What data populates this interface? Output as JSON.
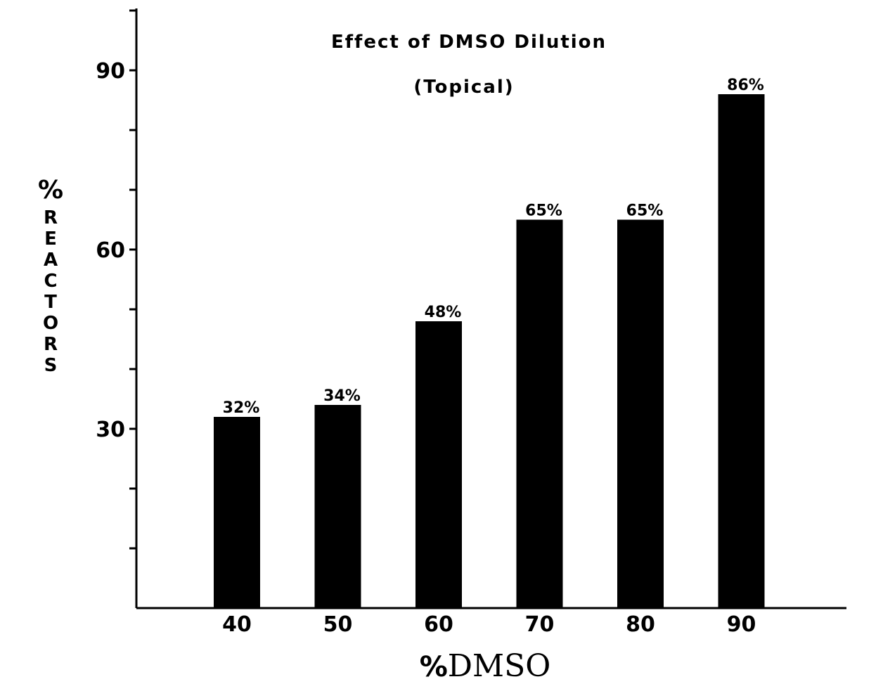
{
  "chart_data": {
    "type": "bar",
    "title": "Effect of DMSO Dilution",
    "subtitle": "(Topical)",
    "categories": [
      "40",
      "50",
      "60",
      "70",
      "80",
      "90"
    ],
    "values": [
      32,
      34,
      48,
      65,
      65,
      86
    ],
    "data_labels": [
      "32%",
      "34%",
      "48%",
      "65%",
      "65%",
      "86%"
    ],
    "xlabel": "%DMSO",
    "xlabel_symbol": "%",
    "xlabel_word": "DMSO",
    "ylabel": "% REACTORS",
    "ylabel_symbol": "%",
    "ylabel_letters": [
      "R",
      "E",
      "A",
      "C",
      "T",
      "O",
      "R",
      "S"
    ],
    "ylim": [
      0,
      100
    ],
    "yticks_labeled": [
      30,
      60,
      90
    ],
    "yticks_labels": [
      "30",
      "60",
      "90"
    ],
    "yticks_minor": [
      10,
      20,
      40,
      50,
      70,
      80,
      100
    ],
    "grid": false,
    "legend": "none",
    "colors": {
      "bar": "#000000",
      "axis": "#000000",
      "background": "#ffffff"
    }
  }
}
